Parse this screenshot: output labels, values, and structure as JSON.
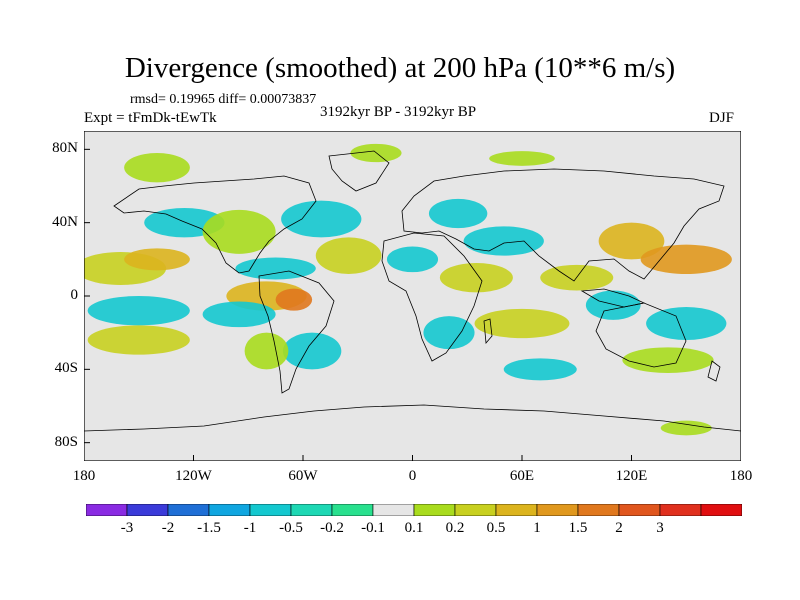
{
  "title": "Divergence (smoothed) at 200 hPa (10**6 m/s)",
  "stats": "rmsd= 0.19965  diff= 0.00073837",
  "experiment": "Expt = tFmDk-tEwTk",
  "period": "3192kyr BP - 3192kyr BP",
  "season": "DJF",
  "map": {
    "background_color": "#e6e6e6",
    "lon_range": [
      -180,
      180
    ],
    "lat_range": [
      -90,
      90
    ],
    "y_axis_labels": [
      "80N",
      "40N",
      "0",
      "40S",
      "80S"
    ],
    "y_axis_values": [
      80,
      40,
      0,
      -40,
      -80
    ],
    "x_axis_labels": [
      "180",
      "120W",
      "60W",
      "0",
      "60E",
      "120E",
      "180"
    ],
    "x_axis_values": [
      -180,
      -120,
      -60,
      0,
      60,
      120,
      180
    ]
  },
  "colorbar": {
    "colors": [
      "#8a2be2",
      "#3b3bd9",
      "#1f6fd6",
      "#10a6e0",
      "#14c8cf",
      "#1ed8b4",
      "#29e08e",
      "#e6e6e6",
      "#a9dc1e",
      "#c8d020",
      "#dcb41e",
      "#e0981e",
      "#e0781e",
      "#e0561e",
      "#e0301e",
      "#e00e10"
    ],
    "labels": [
      "-3",
      "-2",
      "-1.5",
      "-1",
      "-0.5",
      "-0.2",
      "-0.1",
      "0.1",
      "0.2",
      "0.5",
      "1",
      "1.5",
      "2",
      "3"
    ]
  },
  "field_patches": [
    {
      "lon": -160,
      "lat": 15,
      "rx": 25,
      "ry": 9,
      "color": "#c8d020"
    },
    {
      "lon": -140,
      "lat": 20,
      "rx": 18,
      "ry": 6,
      "color": "#dcb41e"
    },
    {
      "lon": -150,
      "lat": -8,
      "rx": 28,
      "ry": 8,
      "color": "#14c8cf"
    },
    {
      "lon": -150,
      "lat": -24,
      "rx": 28,
      "ry": 8,
      "color": "#c8d020"
    },
    {
      "lon": -125,
      "lat": 40,
      "rx": 22,
      "ry": 8,
      "color": "#14c8cf"
    },
    {
      "lon": -140,
      "lat": 70,
      "rx": 18,
      "ry": 8,
      "color": "#a9dc1e"
    },
    {
      "lon": -95,
      "lat": 35,
      "rx": 20,
      "ry": 12,
      "color": "#a9dc1e"
    },
    {
      "lon": -75,
      "lat": 15,
      "rx": 22,
      "ry": 6,
      "color": "#14c8cf"
    },
    {
      "lon": -80,
      "lat": 0,
      "rx": 22,
      "ry": 8,
      "color": "#dcb41e"
    },
    {
      "lon": -65,
      "lat": -2,
      "rx": 10,
      "ry": 6,
      "color": "#e0781e"
    },
    {
      "lon": -95,
      "lat": -10,
      "rx": 20,
      "ry": 7,
      "color": "#14c8cf"
    },
    {
      "lon": -50,
      "lat": 42,
      "rx": 22,
      "ry": 10,
      "color": "#14c8cf"
    },
    {
      "lon": -35,
      "lat": 22,
      "rx": 18,
      "ry": 10,
      "color": "#c8d020"
    },
    {
      "lon": -55,
      "lat": -30,
      "rx": 16,
      "ry": 10,
      "color": "#14c8cf"
    },
    {
      "lon": -80,
      "lat": -30,
      "rx": 12,
      "ry": 10,
      "color": "#a9dc1e"
    },
    {
      "lon": 0,
      "lat": 20,
      "rx": 14,
      "ry": 7,
      "color": "#14c8cf"
    },
    {
      "lon": 25,
      "lat": 45,
      "rx": 16,
      "ry": 8,
      "color": "#14c8cf"
    },
    {
      "lon": 35,
      "lat": 10,
      "rx": 20,
      "ry": 8,
      "color": "#c8d020"
    },
    {
      "lon": 20,
      "lat": -20,
      "rx": 14,
      "ry": 9,
      "color": "#14c8cf"
    },
    {
      "lon": 60,
      "lat": -15,
      "rx": 26,
      "ry": 8,
      "color": "#c8d020"
    },
    {
      "lon": 70,
      "lat": -40,
      "rx": 20,
      "ry": 6,
      "color": "#14c8cf"
    },
    {
      "lon": 50,
      "lat": 30,
      "rx": 22,
      "ry": 8,
      "color": "#14c8cf"
    },
    {
      "lon": 90,
      "lat": 10,
      "rx": 20,
      "ry": 7,
      "color": "#c8d020"
    },
    {
      "lon": 110,
      "lat": -5,
      "rx": 15,
      "ry": 8,
      "color": "#14c8cf"
    },
    {
      "lon": 120,
      "lat": 30,
      "rx": 18,
      "ry": 10,
      "color": "#dcb41e"
    },
    {
      "lon": 150,
      "lat": 20,
      "rx": 25,
      "ry": 8,
      "color": "#e0981e"
    },
    {
      "lon": 150,
      "lat": -15,
      "rx": 22,
      "ry": 9,
      "color": "#14c8cf"
    },
    {
      "lon": 140,
      "lat": -35,
      "rx": 25,
      "ry": 7,
      "color": "#a9dc1e"
    },
    {
      "lon": -20,
      "lat": 78,
      "rx": 14,
      "ry": 5,
      "color": "#a9dc1e"
    },
    {
      "lon": 60,
      "lat": 75,
      "rx": 18,
      "ry": 4,
      "color": "#a9dc1e"
    },
    {
      "lon": 150,
      "lat": -72,
      "rx": 14,
      "ry": 4,
      "color": "#a9dc1e"
    }
  ]
}
